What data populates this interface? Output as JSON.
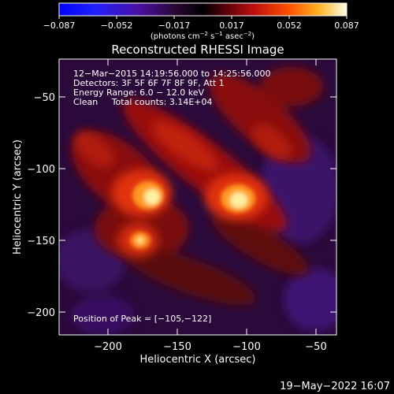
{
  "colorbar": {
    "tick_labels": [
      "−0.087",
      "−0.052",
      "−0.017",
      "0.017",
      "0.052",
      "0.087"
    ],
    "units_prefix": "(photons cm",
    "units_exp1": "−2",
    "units_mid": " s",
    "units_exp2": "−1",
    "units_mid2": " asec",
    "units_exp3": "−2",
    "units_suffix": ")"
  },
  "image": {
    "title": "Reconstructed RHESSI Image",
    "annotation_lines": [
      "12−Mar−2015 14:19:56.000 to 14:25:56.000",
      "Detectors: 3F 5F 6F 7F 8F 9F, Att 1",
      "Energy Range: 6.0 − 12.0 keV",
      "Clean     Total counts: 3.14E+04"
    ],
    "peak_label": "Position of Peak = [−105,−122]",
    "x_axis_label": "Heliocentric X (arcsec)",
    "y_axis_label": "Heliocentric Y (arcsec)",
    "x_ticks": [
      "−200",
      "−150",
      "−100",
      "−50"
    ],
    "y_ticks": [
      "−50",
      "−100",
      "−150",
      "−200"
    ],
    "timestamp": "19−May−2022 16:07"
  }
}
